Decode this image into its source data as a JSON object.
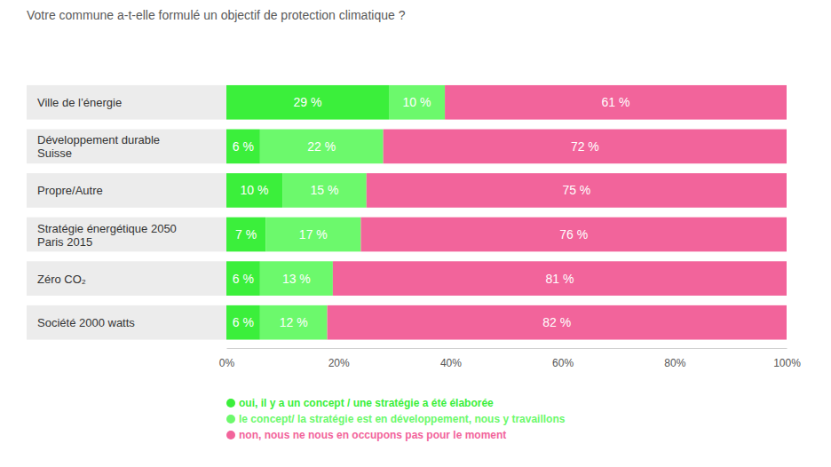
{
  "chart_data": {
    "type": "bar",
    "orientation": "horizontal",
    "stacked": true,
    "data_labels": true,
    "grid": false,
    "legend": "bottom",
    "title": "Votre commune a-t-elle formulé un objectif de protection climatique ?",
    "categories": [
      "Ville de l’énergie",
      "Développement durable\nSuisse",
      "Propre/Autre",
      "Stratégie énergétique 2050\nParis 2015",
      "Zéro CO₂",
      "Société 2000 watts"
    ],
    "xlim": [
      0,
      100
    ],
    "xticks": [
      {
        "value": 0,
        "label": "0%"
      },
      {
        "value": 20,
        "label": "20%"
      },
      {
        "value": 40,
        "label": "40%"
      },
      {
        "value": 60,
        "label": "60%"
      },
      {
        "value": 80,
        "label": "80%"
      },
      {
        "value": 100,
        "label": "100%"
      }
    ],
    "series": [
      {
        "name": "oui, il y a un concept / une stratégie a été élaborée",
        "color": "#3bef3b",
        "values": [
          29,
          6,
          10,
          7,
          6,
          6
        ],
        "value_labels": [
          "29 %",
          "6 %",
          "10 %",
          "7 %",
          "6 %",
          "6 %"
        ]
      },
      {
        "name": "le concept/ la stratégie est en développement, nous y travaillons",
        "color": "#6cf96c",
        "values": [
          10,
          22,
          15,
          17,
          13,
          12
        ],
        "value_labels": [
          "10 %",
          "22 %",
          "15 %",
          "17 %",
          "13 %",
          "12 %"
        ]
      },
      {
        "name": "non, nous ne nous en occupons pas pour le moment",
        "color": "#f2649b",
        "values": [
          61,
          72,
          75,
          76,
          81,
          82
        ],
        "value_labels": [
          "61 %",
          "72 %",
          "75 %",
          "76 %",
          "81 %",
          "82 %"
        ]
      }
    ]
  }
}
